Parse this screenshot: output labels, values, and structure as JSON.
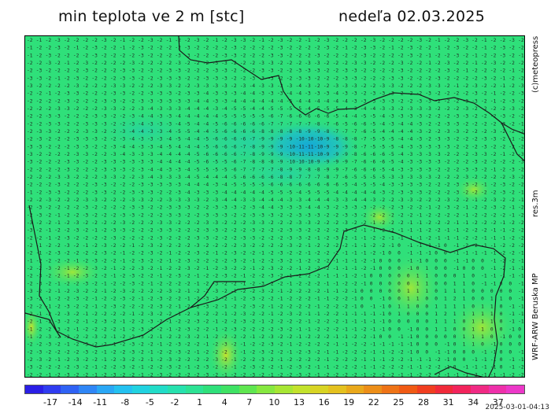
{
  "header": {
    "title": "min teplota ve 2 m [stc]",
    "date": "nedeľa 02.03.2025"
  },
  "side_labels": {
    "credit": "(c)meteopress",
    "resolution": "res.3m",
    "model": "WRF-ARW Beruska MP"
  },
  "colorbar": {
    "colors": [
      "#2a1ee6",
      "#2f3cf0",
      "#2f62f4",
      "#2f86f6",
      "#2aa7f5",
      "#24c1f0",
      "#21d2e0",
      "#22dcc8",
      "#27e1ae",
      "#2de294",
      "#2fe07a",
      "#3fe264",
      "#5fe650",
      "#86e840",
      "#a7e634",
      "#c3e22c",
      "#d8d424",
      "#e4c11f",
      "#e9a81b",
      "#ec8e18",
      "#ee7316",
      "#f05a14",
      "#f03e20",
      "#f02a3a",
      "#f2245c",
      "#f02a84",
      "#ee30aa",
      "#ec38c8"
    ],
    "tick_labels": [
      "-17",
      "-14",
      "-11",
      "-8",
      "-5",
      "-2",
      "1",
      "4",
      "7",
      "10",
      "13",
      "16",
      "19",
      "22",
      "25",
      "28",
      "31",
      "34",
      "37"
    ]
  },
  "footer": {
    "timestamp": "2025-03-01-04:13"
  },
  "map": {
    "base_color": "#2fe07a",
    "cold_color": "#1fb5c8",
    "warm_color": "#8fe63a",
    "border_color": "#222222"
  }
}
